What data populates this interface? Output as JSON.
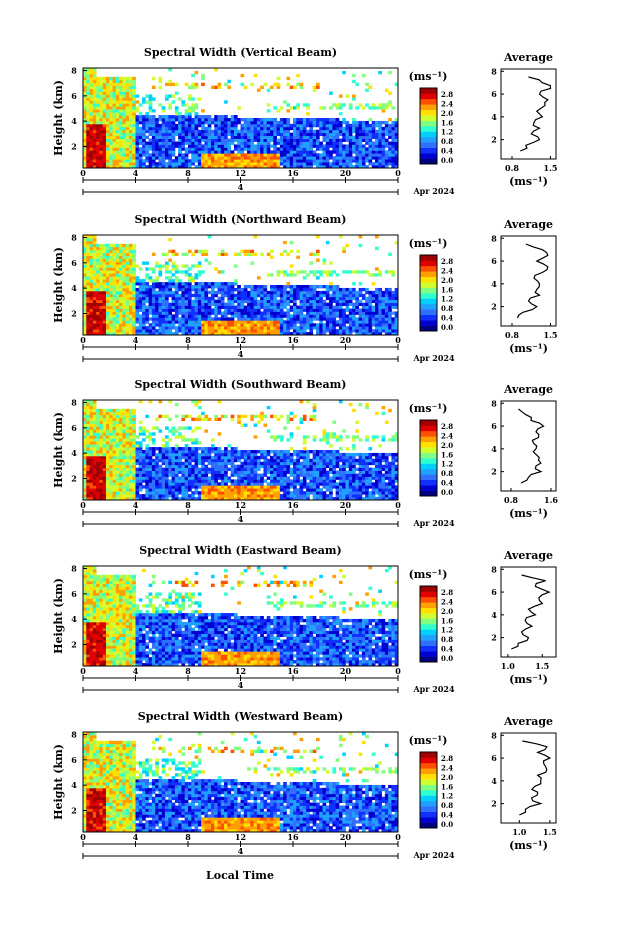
{
  "page": {
    "xlabel": "Local Time",
    "date_label": "Apr 2024",
    "day_label": "4"
  },
  "colorbar": {
    "unit": "(ms⁻¹)",
    "ticks": [
      "0.0",
      "0.4",
      "0.8",
      "1.2",
      "1.6",
      "2.0",
      "2.4",
      "2.8"
    ],
    "colors": [
      "#000080",
      "#0000d0",
      "#1030ff",
      "#3070ff",
      "#20a0ff",
      "#00d0ff",
      "#30ffd0",
      "#80ff80",
      "#d0ff30",
      "#ffe000",
      "#ffa000",
      "#ff5000",
      "#e00000",
      "#a00000"
    ]
  },
  "chart_data": [
    {
      "type": "heatmap",
      "title": "Spectral Width (Vertical Beam)",
      "ylabel": "Height (km)",
      "x_ticks": [
        "0",
        "4",
        "8",
        "12",
        "16",
        "20",
        "0"
      ],
      "y_ticks": [
        "2",
        "4",
        "6",
        "8"
      ],
      "xlim": [
        0,
        24
      ],
      "ylim": [
        0.3,
        8.2
      ],
      "colorbar_ticks": [
        "0.0",
        "0.4",
        "0.8",
        "1.2",
        "1.6",
        "2.0",
        "2.4",
        "2.8"
      ],
      "avg_profile": {
        "title": "Average",
        "xlabel": "(ms⁻¹)",
        "x_ticks": [
          "0.8",
          "1.5"
        ],
        "y_ticks": [
          "2",
          "4",
          "6",
          "8"
        ],
        "xlim": [
          0.6,
          1.6
        ],
        "heights": [
          1.0,
          1.5,
          2.0,
          2.5,
          3.0,
          3.5,
          4.0,
          4.5,
          5.0,
          5.5,
          6.0,
          6.5,
          7.0,
          7.5
        ],
        "values": [
          0.95,
          1.05,
          1.3,
          1.15,
          1.3,
          1.2,
          1.35,
          1.25,
          1.4,
          1.45,
          1.3,
          1.5,
          1.35,
          1.1
        ]
      }
    },
    {
      "type": "heatmap",
      "title": "Spectral Width (Northward Beam)",
      "ylabel": "Height (km)",
      "x_ticks": [
        "0",
        "4",
        "8",
        "12",
        "16",
        "20",
        "0"
      ],
      "y_ticks": [
        "2",
        "4",
        "6",
        "8"
      ],
      "xlim": [
        0,
        24
      ],
      "ylim": [
        0.3,
        8.2
      ],
      "colorbar_ticks": [
        "0.0",
        "0.4",
        "0.8",
        "1.2",
        "1.6",
        "2.0",
        "2.4",
        "2.8"
      ],
      "avg_profile": {
        "title": "Average",
        "xlabel": "(ms⁻¹)",
        "x_ticks": [
          "0.8",
          "1.5"
        ],
        "y_ticks": [
          "2",
          "4",
          "6",
          "8"
        ],
        "xlim": [
          0.6,
          1.6
        ],
        "heights": [
          1.0,
          1.5,
          2.0,
          2.5,
          3.0,
          3.5,
          4.0,
          4.5,
          5.0,
          5.5,
          6.0,
          6.5,
          7.0,
          7.5
        ],
        "values": [
          0.9,
          1.0,
          1.25,
          1.1,
          1.3,
          1.25,
          1.3,
          1.2,
          1.35,
          1.45,
          1.25,
          1.45,
          1.35,
          1.05
        ]
      }
    },
    {
      "type": "heatmap",
      "title": "Spectral Width (Southward Beam)",
      "ylabel": "Height (km)",
      "x_ticks": [
        "0",
        "4",
        "8",
        "12",
        "16",
        "20",
        "0"
      ],
      "y_ticks": [
        "2",
        "4",
        "6",
        "8"
      ],
      "xlim": [
        0,
        24
      ],
      "ylim": [
        0.3,
        8.2
      ],
      "colorbar_ticks": [
        "0.0",
        "0.4",
        "0.8",
        "1.2",
        "1.6",
        "2.0",
        "2.4",
        "2.8"
      ],
      "avg_profile": {
        "title": "Average",
        "xlabel": "(ms⁻¹)",
        "x_ticks": [
          "0.8",
          "1.6"
        ],
        "y_ticks": [
          "2",
          "4",
          "6",
          "8"
        ],
        "xlim": [
          0.6,
          1.7
        ],
        "heights": [
          1.0,
          1.5,
          2.0,
          2.5,
          3.0,
          3.5,
          4.0,
          4.5,
          5.0,
          5.5,
          6.0,
          6.5,
          7.0,
          7.5
        ],
        "values": [
          1.0,
          1.15,
          1.4,
          1.3,
          1.35,
          1.3,
          1.3,
          1.25,
          1.35,
          1.3,
          1.45,
          1.2,
          1.1,
          0.95
        ]
      }
    },
    {
      "type": "heatmap",
      "title": "Spectral Width (Eastward Beam)",
      "ylabel": "Height (km)",
      "x_ticks": [
        "0",
        "4",
        "8",
        "12",
        "16",
        "20",
        "0"
      ],
      "y_ticks": [
        "2",
        "4",
        "6",
        "8"
      ],
      "xlim": [
        0,
        24
      ],
      "ylim": [
        0.3,
        8.2
      ],
      "colorbar_ticks": [
        "0.0",
        "0.4",
        "0.8",
        "1.2",
        "1.6",
        "2.0",
        "2.4",
        "2.8"
      ],
      "avg_profile": {
        "title": "Average",
        "xlabel": "(ms⁻¹)",
        "x_ticks": [
          "1.0",
          "1.5"
        ],
        "y_ticks": [
          "2",
          "4",
          "6",
          "8"
        ],
        "xlim": [
          0.9,
          1.7
        ],
        "heights": [
          1.0,
          1.5,
          2.0,
          2.5,
          3.0,
          3.5,
          4.0,
          4.5,
          5.0,
          5.5,
          6.0,
          6.5,
          7.0,
          7.5
        ],
        "values": [
          1.05,
          1.15,
          1.3,
          1.2,
          1.35,
          1.25,
          1.4,
          1.3,
          1.5,
          1.45,
          1.6,
          1.4,
          1.55,
          1.2
        ]
      }
    },
    {
      "type": "heatmap",
      "title": "Spectral Width (Westward Beam)",
      "ylabel": "Height (km)",
      "x_ticks": [
        "0",
        "4",
        "8",
        "12",
        "16",
        "20",
        "0"
      ],
      "y_ticks": [
        "2",
        "4",
        "6",
        "8"
      ],
      "xlim": [
        0,
        24
      ],
      "ylim": [
        0.3,
        8.2
      ],
      "colorbar_ticks": [
        "0.0",
        "0.4",
        "0.8",
        "1.2",
        "1.6",
        "2.0",
        "2.4",
        "2.8"
      ],
      "avg_profile": {
        "title": "Average",
        "xlabel": "(ms⁻¹)",
        "x_ticks": [
          "1.0",
          "1.5"
        ],
        "y_ticks": [
          "2",
          "4",
          "6",
          "8"
        ],
        "xlim": [
          0.7,
          1.6
        ],
        "heights": [
          1.0,
          1.5,
          2.0,
          2.5,
          3.0,
          3.5,
          4.0,
          4.5,
          5.0,
          5.5,
          6.0,
          6.5,
          7.0,
          7.5
        ],
        "values": [
          1.0,
          1.1,
          1.35,
          1.2,
          1.3,
          1.25,
          1.35,
          1.3,
          1.45,
          1.4,
          1.5,
          1.3,
          1.45,
          1.05
        ]
      }
    }
  ]
}
